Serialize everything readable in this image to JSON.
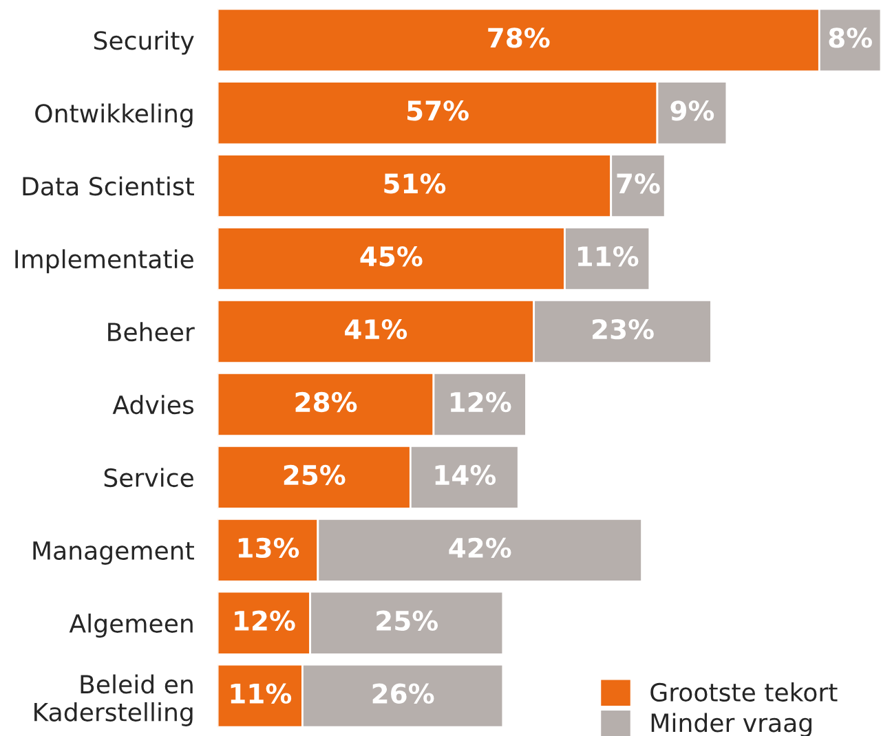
{
  "chart_data": {
    "type": "bar",
    "orientation": "horizontal",
    "stacked": true,
    "tick_labels": "y",
    "grid": false,
    "legend": "bottom right",
    "categories": [
      "Security",
      "Ontwikkeling",
      "Data Scientist",
      "Implementatie",
      "Beheer",
      "Advies",
      "Service",
      "Management",
      "Algemeen",
      "Beleid en\nKaderstelling"
    ],
    "series": [
      {
        "name": "Grootste tekort",
        "color": "#ec6a13",
        "values": [
          78,
          57,
          51,
          45,
          41,
          28,
          25,
          13,
          12,
          11
        ],
        "value_labels": [
          "78%",
          "57%",
          "51%",
          "45%",
          "41%",
          "28%",
          "25%",
          "13%",
          "12%",
          "11%"
        ]
      },
      {
        "name": "Minder vraag",
        "color": "#b6afac",
        "values": [
          8,
          9,
          7,
          11,
          23,
          12,
          14,
          42,
          25,
          26
        ],
        "value_labels": [
          "8%",
          "9%",
          "7%",
          "11%",
          "23%",
          "12%",
          "14%",
          "42%",
          "25%",
          "26%"
        ]
      }
    ]
  }
}
